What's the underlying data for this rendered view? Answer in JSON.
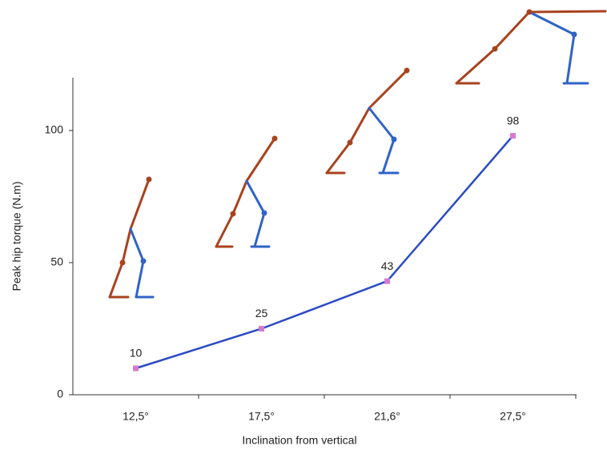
{
  "chart_data": {
    "type": "line",
    "x_label": "Inclination from vertical",
    "y_label": "Peak hip torque (N.m)",
    "categories": [
      "12,5°",
      "17,5°",
      "21,6°",
      "27,5°"
    ],
    "values": [
      10,
      25,
      43,
      98
    ],
    "color": "#2b4bc4",
    "marker_color": "#d47ad0",
    "ylim": [
      0,
      120
    ],
    "yticks": [
      0,
      50,
      100
    ],
    "grid": false
  }
}
